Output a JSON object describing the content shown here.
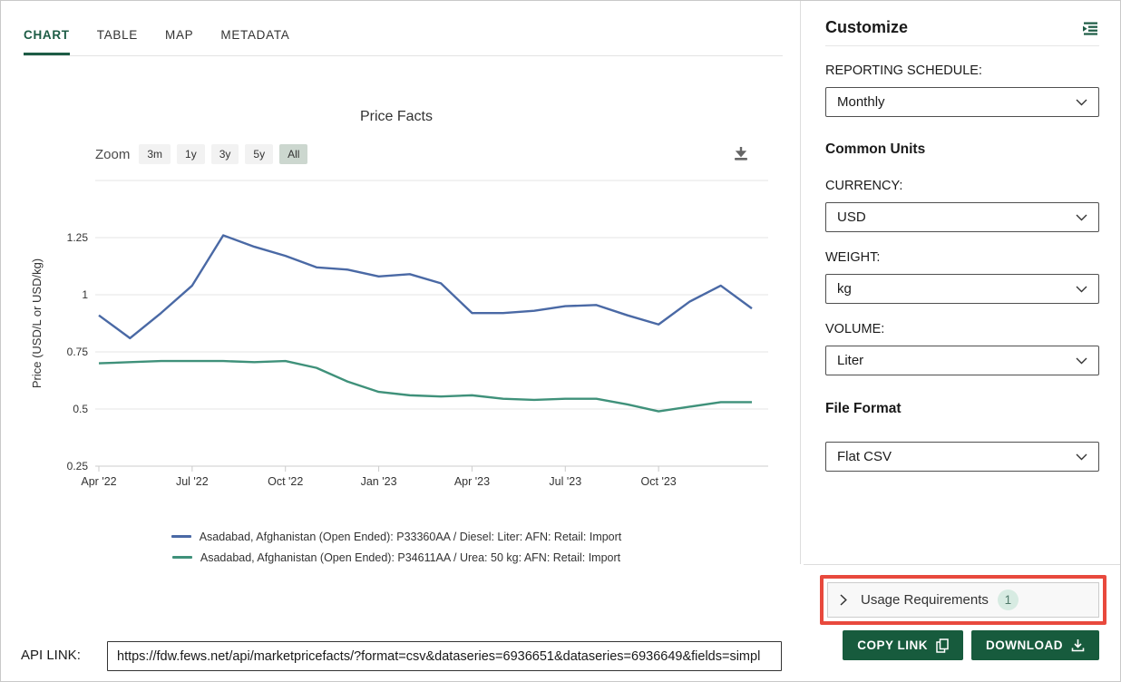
{
  "tabs": {
    "items": [
      {
        "label": "CHART",
        "active": true
      },
      {
        "label": "TABLE",
        "active": false
      },
      {
        "label": "MAP",
        "active": false
      },
      {
        "label": "METADATA",
        "active": false
      }
    ]
  },
  "chart": {
    "title": "Price Facts",
    "zoom_label": "Zoom",
    "zoom_buttons": [
      "3m",
      "1y",
      "3y",
      "5y",
      "All"
    ],
    "zoom_selected": "All"
  },
  "chart_data": {
    "type": "line",
    "title": "Price Facts",
    "ylabel": "Price (USD/L or USD/kg)",
    "ylim": [
      0.25,
      1.5
    ],
    "yticks": [
      0.25,
      0.5,
      0.75,
      1,
      1.25
    ],
    "x": [
      "Apr 2022",
      "May 2022",
      "Jun 2022",
      "Jul 2022",
      "Aug 2022",
      "Sep 2022",
      "Oct 2022",
      "Nov 2022",
      "Dec 2022",
      "Jan 2023",
      "Feb 2023",
      "Mar 2023",
      "Apr 2023",
      "May 2023",
      "Jun 2023",
      "Jul 2023",
      "Aug 2023",
      "Sep 2023",
      "Oct 2023",
      "Nov 2023",
      "Dec 2023",
      "Jan 2024"
    ],
    "xtick_indices": [
      0,
      3,
      6,
      9,
      12,
      15,
      18
    ],
    "xtick_labels": [
      "Apr '22",
      "Jul '22",
      "Oct '22",
      "Jan '23",
      "Apr '23",
      "Jul '23",
      "Oct '23"
    ],
    "grid": true,
    "legend_position": "bottom",
    "series": [
      {
        "name": "Asadabad, Afghanistan (Open Ended): P33360AA / Diesel: Liter: AFN: Retail: Import",
        "color": "#4a69a5",
        "values": [
          0.91,
          0.81,
          0.92,
          1.04,
          1.26,
          1.21,
          1.17,
          1.12,
          1.11,
          1.08,
          1.09,
          1.05,
          0.92,
          0.92,
          0.93,
          0.95,
          0.955,
          0.91,
          0.87,
          0.97,
          1.04,
          0.94
        ]
      },
      {
        "name": "Asadabad, Afghanistan (Open Ended): P34611AA / Urea: 50 kg: AFN: Retail: Import",
        "color": "#3f917a",
        "values": [
          0.7,
          0.705,
          0.71,
          0.71,
          0.71,
          0.705,
          0.71,
          0.68,
          0.62,
          0.575,
          0.56,
          0.555,
          0.56,
          0.545,
          0.54,
          0.545,
          0.545,
          0.52,
          0.49,
          0.51,
          0.53,
          0.53
        ]
      }
    ]
  },
  "api_link": {
    "label": "API LINK:",
    "value": "https://fdw.fews.net/api/marketpricefacts/?format=csv&dataseries=6936651&dataseries=6936649&fields=simpl"
  },
  "sidebar": {
    "title": "Customize",
    "reporting_schedule": {
      "label": "REPORTING SCHEDULE:",
      "value": "Monthly"
    },
    "common_units_header": "Common Units",
    "currency": {
      "label": "CURRENCY:",
      "value": "USD"
    },
    "weight": {
      "label": "WEIGHT:",
      "value": "kg"
    },
    "volume": {
      "label": "VOLUME:",
      "value": "Liter"
    },
    "file_format_header": "File Format",
    "file_format": {
      "value": "Flat CSV"
    },
    "usage_requirements": {
      "label": "Usage Requirements",
      "count": "1"
    },
    "buttons": {
      "copy_link": "COPY LINK",
      "download": "DOWNLOAD"
    }
  },
  "icons": {
    "chart_export": "download-icon",
    "customize_panel": "indent-list-icon",
    "select": "chevron-down-icon",
    "usage_expand": "chevron-right-icon",
    "copy_link": "copy-icon",
    "download": "download-icon"
  },
  "colors": {
    "accent_green_button": "#175b3d",
    "tab_active_green": "#1d5c45",
    "highlight_red": "#e8493d",
    "series_blue": "#4a69a5",
    "series_green": "#3f917a",
    "badge_bg": "#d7ebe2",
    "zoom_selected_bg": "#ccd7cf"
  }
}
